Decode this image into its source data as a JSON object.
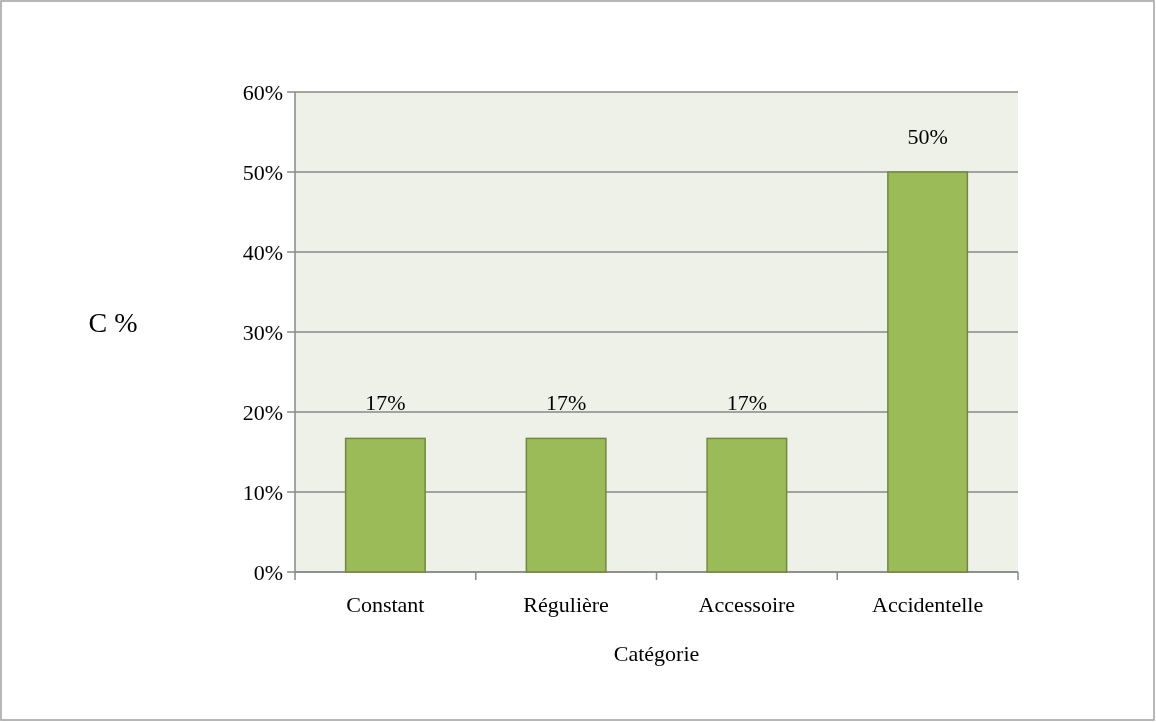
{
  "chart_data": {
    "type": "bar",
    "xlabel": "Catégorie",
    "ylabel": "C %",
    "categories": [
      "Constant",
      "Régulière",
      "Accessoire",
      "Accidentelle"
    ],
    "values": [
      16.7,
      16.7,
      16.7,
      50
    ],
    "value_labels": [
      "17%",
      "17%",
      "17%",
      "50%"
    ],
    "color": "#9bbb59",
    "ylim": [
      0,
      60
    ],
    "yticks": [
      {
        "value": 0,
        "label": "0%"
      },
      {
        "value": 10,
        "label": "10%"
      },
      {
        "value": 20,
        "label": "20%"
      },
      {
        "value": 30,
        "label": "30%"
      },
      {
        "value": 40,
        "label": "40%"
      },
      {
        "value": 50,
        "label": "50%"
      },
      {
        "value": 60,
        "label": "60%"
      }
    ],
    "grid": "y"
  }
}
